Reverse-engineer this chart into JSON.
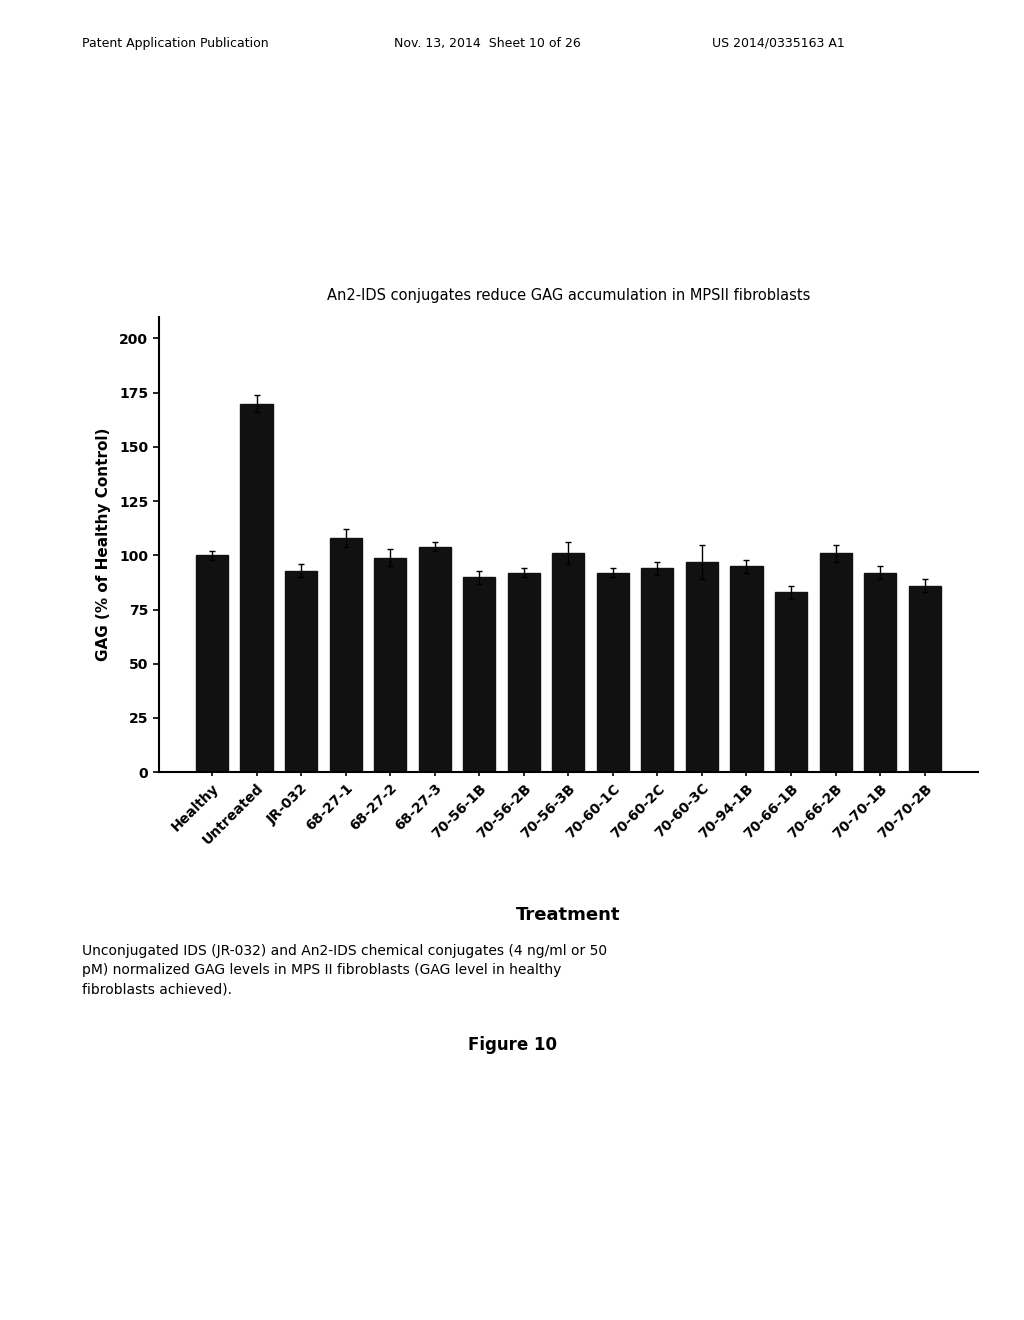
{
  "title": "An2-IDS conjugates reduce GAG accumulation in MPSII fibroblasts",
  "xlabel": "Treatment",
  "ylabel": "GAG (% of Healthy Control)",
  "categories": [
    "Healthy",
    "Untreated",
    "JR-032",
    "68-27-1",
    "68-27-2",
    "68-27-3",
    "70-56-1B",
    "70-56-2B",
    "70-56-3B",
    "70-60-1C",
    "70-60-2C",
    "70-60-3C",
    "70-94-1B",
    "70-66-1B",
    "70-66-2B",
    "70-70-1B",
    "70-70-2B"
  ],
  "values": [
    100,
    170,
    93,
    108,
    99,
    104,
    90,
    92,
    101,
    92,
    94,
    97,
    95,
    83,
    101,
    92,
    86
  ],
  "errors": [
    2,
    4,
    3,
    4,
    4,
    2,
    3,
    2,
    5,
    2,
    3,
    8,
    3,
    3,
    4,
    3,
    3
  ],
  "bar_color": "#111111",
  "ylim": [
    0,
    210
  ],
  "yticks": [
    0,
    25,
    50,
    75,
    100,
    125,
    150,
    175,
    200
  ],
  "caption": "Unconjugated IDS (JR-032) and An2-IDS chemical conjugates (4 ng/ml or 50\npM) normalized GAG levels in MPS II fibroblasts (GAG level in healthy\nfibroblasts achieved).",
  "figure_label": "Figure 10",
  "header_left": "Patent Application Publication",
  "header_mid": "Nov. 13, 2014  Sheet 10 of 26",
  "header_right": "US 2014/0335163 A1",
  "background_color": "#ffffff",
  "title_fontsize": 10.5,
  "axis_label_fontsize": 11,
  "tick_fontsize": 10,
  "xlabel_fontsize": 13,
  "caption_fontsize": 10,
  "figure_label_fontsize": 12,
  "header_fontsize": 9
}
